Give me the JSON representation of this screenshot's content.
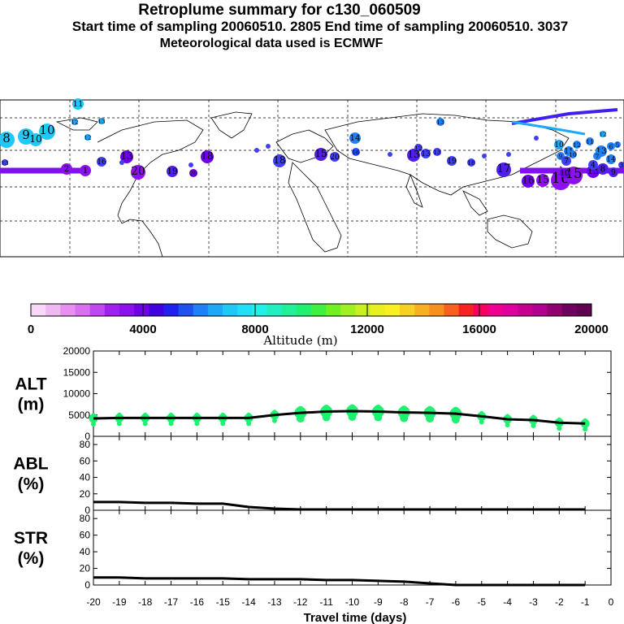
{
  "header": {
    "title": "Retroplume summary for c130_060509",
    "sampling_line": "Start time of sampling 20060510.  2805     End time of sampling 20060510.  3037",
    "met_line": "Meteorological data used is ECMWF"
  },
  "colorbar": {
    "label": "Altitude (m)",
    "ticks": [
      "0",
      "4000",
      "8000",
      "12000",
      "16000",
      "20000"
    ],
    "colors": [
      "#f8d8f8",
      "#f0b8f0",
      "#e890f0",
      "#d870f0",
      "#c048f0",
      "#a020f0",
      "#8c10f0",
      "#7000e8",
      "#4000e0",
      "#2020f0",
      "#2050f0",
      "#2080f8",
      "#20a8f8",
      "#20c8f8",
      "#20e0f8",
      "#20f0e8",
      "#20f0c0",
      "#20f098",
      "#20f070",
      "#40f040",
      "#70f020",
      "#a0f020",
      "#c8f020",
      "#e8f020",
      "#f8f020",
      "#f8d020",
      "#f8b020",
      "#f89020",
      "#f86020",
      "#f82020",
      "#f80060",
      "#f00090",
      "#e000a0",
      "#c80090",
      "#b00090",
      "#900070",
      "#700060",
      "#600050"
    ]
  },
  "map": {
    "labels": [
      "11",
      "12",
      "13",
      "12",
      "10",
      "8",
      "9",
      "10",
      "13",
      "16",
      "13",
      "20",
      "18",
      "19",
      "20",
      "18",
      "15",
      "20",
      "16",
      "14",
      "13",
      "12",
      "13",
      "13",
      "13",
      "19",
      "18",
      "17",
      "16",
      "15",
      "16",
      "15",
      "13",
      "10",
      "11",
      "12",
      "13",
      "14",
      "12",
      "11",
      "10",
      "9",
      "7",
      "8",
      "9",
      "10",
      "7",
      "6",
      "5",
      "4",
      "3",
      "2",
      "1"
    ]
  },
  "chart_data": [
    {
      "type": "line",
      "title": "ALT (m)",
      "panel_label_1": "ALT",
      "panel_label_2": "(m)",
      "ylabel": "Altitude (m)",
      "ylim": [
        0,
        20000
      ],
      "yticks": [
        "0",
        "5000",
        "10000",
        "15000",
        "20000"
      ],
      "x": [
        -20,
        -19,
        -18,
        -17,
        -16,
        -15,
        -14,
        -13,
        -12,
        -11,
        -10,
        -9,
        -8,
        -7,
        -6,
        -5,
        -4,
        -3,
        -2,
        -1
      ],
      "values": [
        4200,
        4300,
        4300,
        4300,
        4300,
        4300,
        4300,
        5000,
        5500,
        5800,
        5900,
        5800,
        5600,
        5500,
        5300,
        4700,
        4000,
        3800,
        3200,
        3000
      ],
      "scatter_color": "#20f070"
    },
    {
      "type": "line",
      "title": "ABL (%)",
      "panel_label_1": "ABL",
      "panel_label_2": "(%)",
      "ylim": [
        0,
        90
      ],
      "yticks": [
        "0",
        "20",
        "40",
        "60",
        "80"
      ],
      "x": [
        -20,
        -19,
        -18,
        -17,
        -16,
        -15,
        -14,
        -13,
        -12,
        -11,
        -10,
        -9,
        -8,
        -7,
        -6,
        -5,
        -4,
        -3,
        -2,
        -1
      ],
      "values": [
        10,
        10,
        9,
        9,
        8,
        8,
        4,
        2,
        1,
        1,
        1,
        1,
        1,
        1,
        1,
        1,
        1,
        1,
        1,
        1
      ]
    },
    {
      "type": "line",
      "title": "STR (%)",
      "panel_label_1": "STR",
      "panel_label_2": "(%)",
      "ylim": [
        0,
        90
      ],
      "yticks": [
        "0",
        "20",
        "40",
        "60",
        "80"
      ],
      "x": [
        -20,
        -19,
        -18,
        -17,
        -16,
        -15,
        -14,
        -13,
        -12,
        -11,
        -10,
        -9,
        -8,
        -7,
        -6,
        -5,
        -4,
        -3,
        -2,
        -1
      ],
      "values": [
        9,
        9,
        8,
        8,
        8,
        8,
        7,
        7,
        7,
        6,
        6,
        5,
        4,
        2,
        0,
        0,
        0,
        0,
        0,
        0
      ]
    }
  ],
  "xaxis": {
    "label": "Travel time (days)",
    "ticks": [
      "-20",
      "-19",
      "-18",
      "-17",
      "-16",
      "-15",
      "-14",
      "-13",
      "-12",
      "-11",
      "-10",
      "-9",
      "-8",
      "-7",
      "-6",
      "-5",
      "-4",
      "-3",
      "-2",
      "-1",
      "0"
    ]
  }
}
